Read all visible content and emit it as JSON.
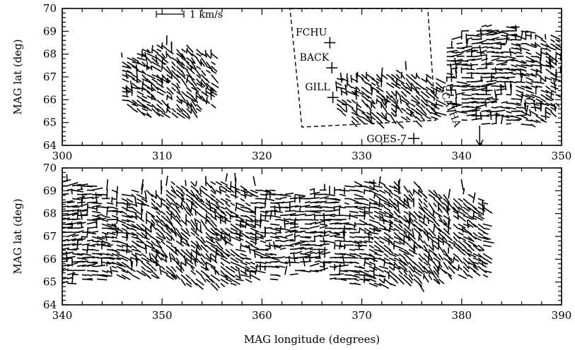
{
  "chart_data": [
    {
      "type": "quiver",
      "panel": "top",
      "xlim": [
        300,
        350
      ],
      "ylim": [
        64,
        70
      ],
      "ylabel": "MAG lat (deg)",
      "xlabel": "",
      "xticks": [
        "300",
        "310",
        "320",
        "330",
        "340",
        "350"
      ],
      "yticks": [
        "64",
        "65",
        "66",
        "67",
        "68",
        "69",
        "70"
      ],
      "scale_label": "1 km/s",
      "field_of_view_box": {
        "corners": [
          [
            322.8,
            70.0
          ],
          [
            336.6,
            70.0
          ],
          [
            337.4,
            65.1
          ],
          [
            324.0,
            64.8
          ],
          [
            322.8,
            70.0
          ]
        ]
      },
      "stations": [
        {
          "name": "FCHU",
          "lon": 326.8,
          "lat": 68.5
        },
        {
          "name": "BACK",
          "lon": 327.0,
          "lat": 67.4
        },
        {
          "name": "GILL",
          "lon": 327.1,
          "lat": 66.1
        },
        {
          "name": "GOES-7",
          "lon": 335.2,
          "lat": 64.3
        }
      ],
      "satellite": {
        "name": "SCATHA",
        "lon": 341.8,
        "lat": 64.0
      },
      "vector_regions": [
        {
          "lon_range": [
            306.0,
            315.0
          ],
          "lat_range": [
            65.3,
            68.4
          ],
          "orientation": "mixed"
        },
        {
          "lon_range": [
            327.5,
            337.5
          ],
          "lat_range": [
            65.0,
            67.3
          ],
          "orientation": "mixed"
        },
        {
          "lon_range": [
            338.5,
            350.0
          ],
          "lat_range": [
            64.8,
            69.2
          ],
          "orientation": "mixed"
        }
      ]
    },
    {
      "type": "quiver",
      "panel": "bottom",
      "xlim": [
        340,
        390
      ],
      "ylim": [
        64,
        70
      ],
      "ylabel": "MAG lat (deg)",
      "xlabel": "MAG longitude (degrees)",
      "xticks": [
        "340",
        "350",
        "360",
        "370",
        "380",
        "390"
      ],
      "yticks": [
        "64",
        "65",
        "66",
        "67",
        "68",
        "69",
        "70"
      ],
      "vector_regions": [
        {
          "lon_range": [
            340.0,
            382.5
          ],
          "lat_range": [
            64.9,
            69.4
          ],
          "orientation": "mixed"
        }
      ]
    }
  ]
}
